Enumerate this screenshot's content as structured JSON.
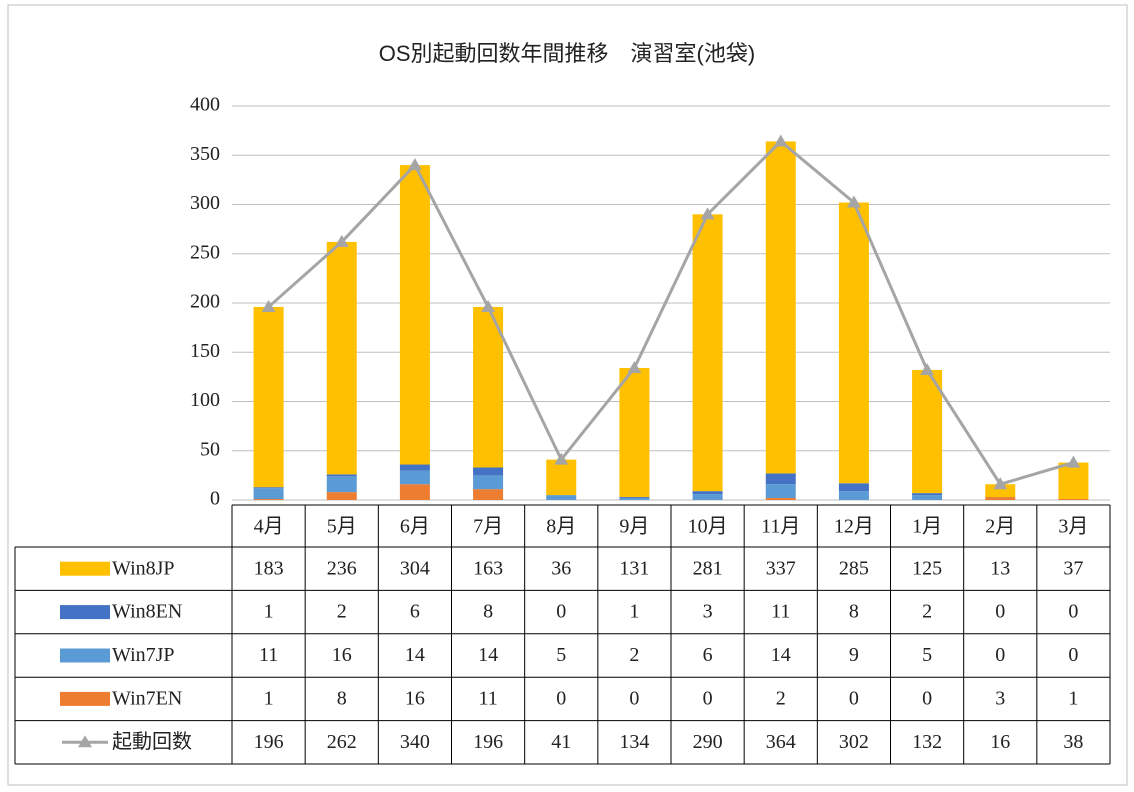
{
  "chart_data": {
    "type": "bar",
    "title": "OS別起動回数年間推移　演習室(池袋)",
    "categories": [
      "4月",
      "5月",
      "6月",
      "7月",
      "8月",
      "9月",
      "10月",
      "11月",
      "12月",
      "1月",
      "2月",
      "3月"
    ],
    "series": [
      {
        "name": "Win8JP",
        "type": "bar",
        "color": "#FFC000",
        "values": [
          183,
          236,
          304,
          163,
          36,
          131,
          281,
          337,
          285,
          125,
          13,
          37
        ]
      },
      {
        "name": "Win8EN",
        "type": "bar",
        "color": "#4472C4",
        "values": [
          1,
          2,
          6,
          8,
          0,
          1,
          3,
          11,
          8,
          2,
          0,
          0
        ]
      },
      {
        "name": "Win7JP",
        "type": "bar",
        "color": "#5B9BD5",
        "values": [
          11,
          16,
          14,
          14,
          5,
          2,
          6,
          14,
          9,
          5,
          0,
          0
        ]
      },
      {
        "name": "Win7EN",
        "type": "bar",
        "color": "#ED7D31",
        "values": [
          1,
          8,
          16,
          11,
          0,
          0,
          0,
          2,
          0,
          0,
          3,
          1
        ]
      },
      {
        "name": "起動回数",
        "type": "line",
        "color": "#A5A5A5",
        "values": [
          196,
          262,
          340,
          196,
          41,
          134,
          290,
          364,
          302,
          132,
          16,
          38
        ]
      }
    ],
    "ylim": [
      0,
      400
    ],
    "yticks": [
      0,
      50,
      100,
      150,
      200,
      250,
      300,
      350,
      400
    ],
    "grid": true
  }
}
